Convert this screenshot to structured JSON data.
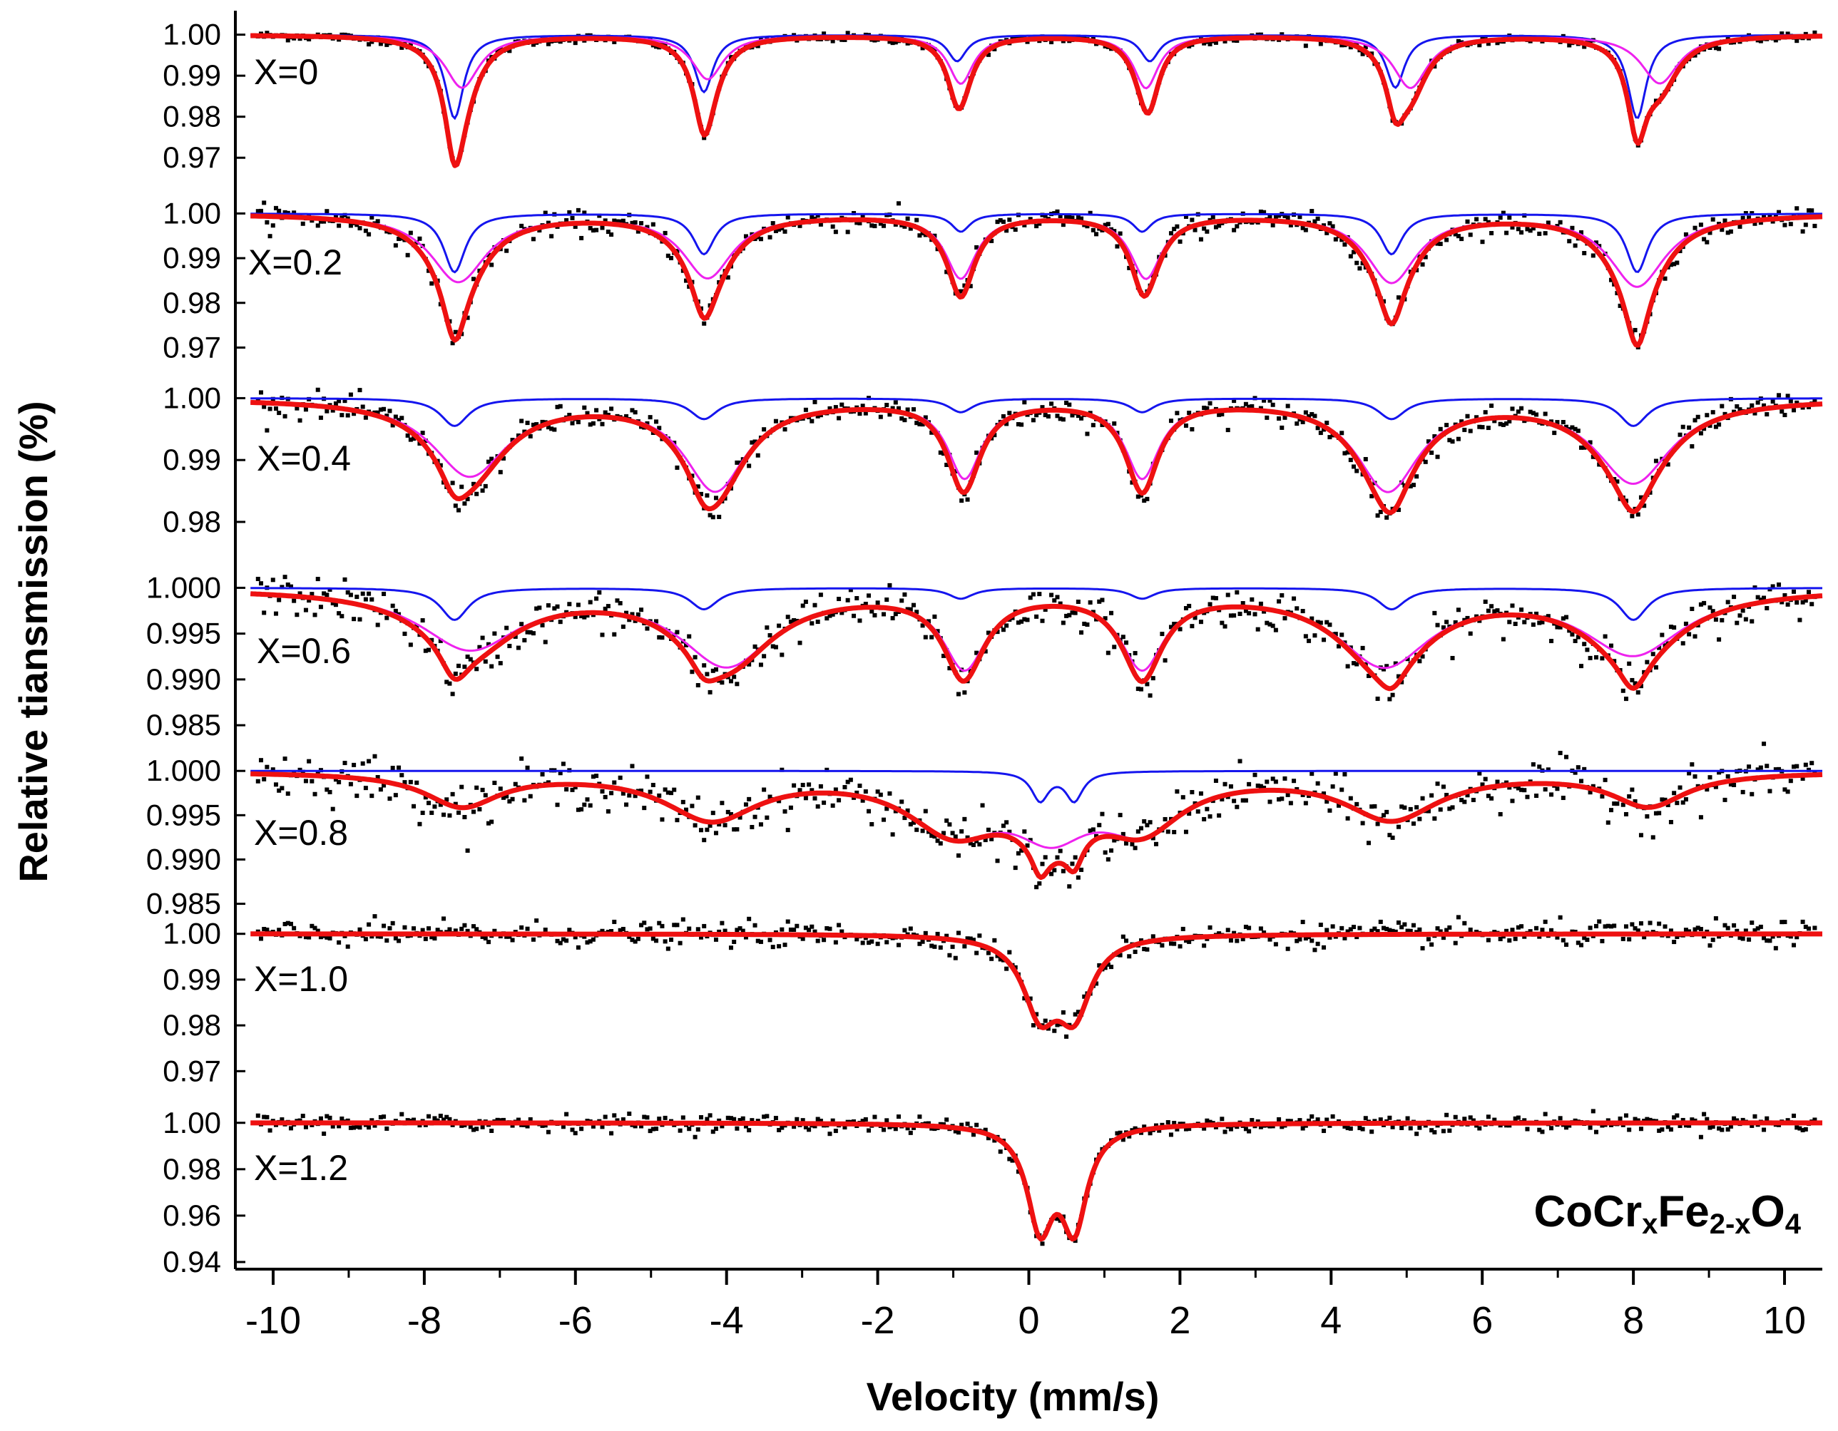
{
  "chart_data": {
    "type": "line",
    "title": "",
    "formula": {
      "parts": [
        {
          "text": "CoCr",
          "sub": false
        },
        {
          "text": "x",
          "sub": true
        },
        {
          "text": "Fe",
          "sub": false
        },
        {
          "text": "2-x",
          "sub": true
        },
        {
          "text": "O",
          "sub": false
        },
        {
          "text": "4",
          "sub": true
        }
      ]
    },
    "xlabel": "Velocity (mm/s)",
    "ylabel": "Relative tiansmission (%)",
    "xlim": [
      -10.5,
      10.5
    ],
    "xticks": [
      "-10",
      "-8",
      "-6",
      "-4",
      "-2",
      "0",
      "2",
      "4",
      "6",
      "8",
      "10"
    ],
    "series_colors": {
      "data": "#000000",
      "fit": "#ee1111",
      "subspectrum_A": "#1515ee",
      "subspectrum_B": "#ee22ee"
    },
    "panels": [
      {
        "label": "X=0",
        "ylim": [
          0.965,
          1.0015
        ],
        "yticks": [
          "1.00",
          "0.99",
          "0.98",
          "0.97"
        ],
        "noise": 0.0005,
        "width_scale": 1.0,
        "fit_min": 0.968,
        "components": {
          "A": {
            "color": "#1515ee",
            "peaks": [
              [
                -7.6,
                0.019,
                0.3
              ],
              [
                -4.3,
                0.013,
                0.3
              ],
              [
                -0.95,
                0.006,
                0.3
              ],
              [
                1.6,
                0.006,
                0.3
              ],
              [
                4.85,
                0.012,
                0.3
              ],
              [
                8.05,
                0.019,
                0.3
              ]
            ]
          },
          "B": {
            "color": "#ee22ee",
            "peaks": [
              [
                -7.5,
                0.012,
                0.55
              ],
              [
                -4.25,
                0.01,
                0.5
              ],
              [
                -0.9,
                0.011,
                0.4
              ],
              [
                1.55,
                0.012,
                0.4
              ],
              [
                5.05,
                0.012,
                0.55
              ],
              [
                8.35,
                0.011,
                0.6
              ]
            ]
          }
        }
      },
      {
        "label": "X=0.2",
        "ylim": [
          0.968,
          1.0015
        ],
        "yticks": [
          "1.00",
          "0.99",
          "0.98",
          "0.97"
        ],
        "noise": 0.0013,
        "width_scale": 1.0,
        "fit_min": 0.9705,
        "components": {
          "A": {
            "color": "#1515ee",
            "peaks": [
              [
                -7.6,
                0.013,
                0.35
              ],
              [
                -4.3,
                0.009,
                0.35
              ],
              [
                -0.9,
                0.004,
                0.3
              ],
              [
                1.5,
                0.004,
                0.3
              ],
              [
                4.8,
                0.009,
                0.35
              ],
              [
                8.05,
                0.013,
                0.35
              ]
            ]
          },
          "B": {
            "color": "#ee22ee",
            "peaks": [
              [
                -7.55,
                0.015,
                0.9
              ],
              [
                -4.25,
                0.014,
                0.8
              ],
              [
                -0.9,
                0.014,
                0.5
              ],
              [
                1.55,
                0.014,
                0.5
              ],
              [
                4.8,
                0.015,
                0.8
              ],
              [
                8.05,
                0.016,
                0.9
              ]
            ]
          }
        }
      },
      {
        "label": "X=0.4",
        "ylim": [
          0.9785,
          1.0012
        ],
        "yticks": [
          "1.00",
          "0.99",
          "0.98"
        ],
        "noise": 0.0011,
        "width_scale": 1.0,
        "fit_min": 0.9815,
        "components": {
          "A": {
            "color": "#1515ee",
            "peaks": [
              [
                -7.6,
                0.004,
                0.45
              ],
              [
                -4.3,
                0.003,
                0.45
              ],
              [
                -0.9,
                0.002,
                0.4
              ],
              [
                1.5,
                0.002,
                0.4
              ],
              [
                4.8,
                0.003,
                0.45
              ],
              [
                8.0,
                0.004,
                0.45
              ]
            ]
          },
          "B": {
            "color": "#ee22ee",
            "peaks": [
              [
                -7.4,
                0.011,
                1.2
              ],
              [
                -4.15,
                0.013,
                1.0
              ],
              [
                -0.85,
                0.011,
                0.55
              ],
              [
                1.5,
                0.011,
                0.55
              ],
              [
                4.75,
                0.013,
                1.0
              ],
              [
                8.0,
                0.012,
                1.2
              ]
            ]
          }
        }
      },
      {
        "label": "X=0.6",
        "ylim": [
          0.984,
          1.0005
        ],
        "yticks": [
          "1.000",
          "0.995",
          "0.990",
          "0.985"
        ],
        "noise": 0.0011,
        "width_scale": 1.0,
        "fit_min": 0.989,
        "components": {
          "A": {
            "color": "#1515ee",
            "peaks": [
              [
                -7.6,
                0.003,
                0.45
              ],
              [
                -4.3,
                0.002,
                0.45
              ],
              [
                -0.9,
                0.001,
                0.4
              ],
              [
                1.5,
                0.001,
                0.4
              ],
              [
                4.8,
                0.002,
                0.45
              ],
              [
                8.0,
                0.003,
                0.45
              ]
            ]
          },
          "B": {
            "color": "#ee22ee",
            "peaks": [
              [
                -7.4,
                0.0055,
                1.6
              ],
              [
                -4.0,
                0.007,
                1.5
              ],
              [
                -0.85,
                0.007,
                0.7
              ],
              [
                1.5,
                0.007,
                0.7
              ],
              [
                4.7,
                0.007,
                1.5
              ],
              [
                8.0,
                0.006,
                1.6
              ]
            ]
          }
        }
      },
      {
        "label": "X=0.8",
        "ylim": [
          0.984,
          1.0005
        ],
        "yticks": [
          "1.000",
          "0.995",
          "0.990",
          "0.985"
        ],
        "noise": 0.0013,
        "width_scale": 1.0,
        "fit_min": 0.988,
        "components": {
          "A": {
            "color": "#1515ee",
            "peaks": [
              [
                0.15,
                0.0035,
                0.28
              ],
              [
                0.6,
                0.0035,
                0.28
              ]
            ]
          },
          "B": {
            "color": "#ee22ee",
            "peaks": [
              [
                -7.5,
                0.004,
                1.2
              ],
              [
                -4.2,
                0.0055,
                1.5
              ],
              [
                -1.0,
                0.0065,
                1.5
              ],
              [
                0.3,
                0.006,
                1.2
              ],
              [
                1.5,
                0.006,
                1.3
              ],
              [
                4.8,
                0.0055,
                1.5
              ],
              [
                8.2,
                0.004,
                1.2
              ]
            ]
          }
        }
      },
      {
        "label": "X=1.0",
        "ylim": [
          0.966,
          1.0012
        ],
        "yticks": [
          "1.00",
          "0.99",
          "0.98",
          "0.97"
        ],
        "noise": 0.0013,
        "width_scale": 1.0,
        "fit_min": 0.9795,
        "components": {
          "B": {
            "color": "#ee1111",
            "peaks": [
              [
                0.15,
                0.0135,
                0.55
              ],
              [
                0.6,
                0.0135,
                0.55
              ]
            ]
          }
        }
      },
      {
        "label": "X=1.2",
        "ylim": [
          0.94,
          1.003
        ],
        "yticks": [
          "1.00",
          "0.98",
          "0.96",
          "0.94"
        ],
        "noise": 0.0018,
        "width_scale": 1.0,
        "fit_min": 0.95,
        "components": {
          "B": {
            "color": "#ee1111",
            "peaks": [
              [
                0.15,
                0.031,
                0.42
              ],
              [
                0.6,
                0.031,
                0.42
              ]
            ]
          }
        }
      }
    ]
  }
}
